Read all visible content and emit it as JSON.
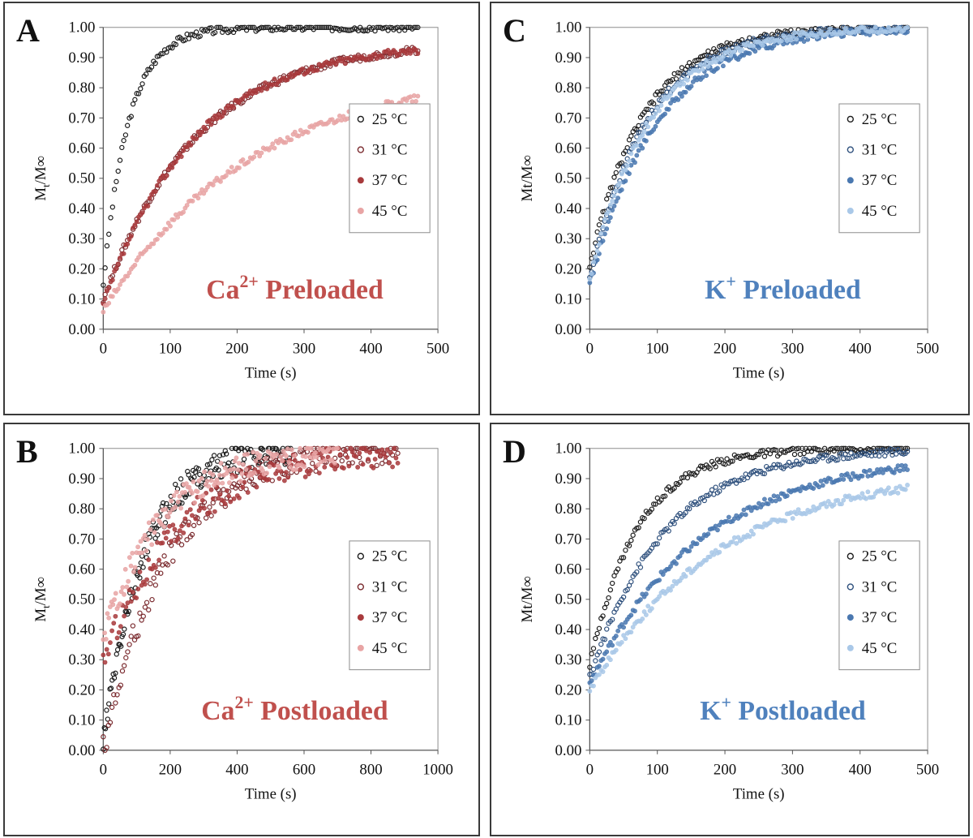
{
  "chart_data": [
    {
      "panel": "A",
      "type": "scatter",
      "title": "",
      "annotation": {
        "base": "Ca",
        "sup": "2+",
        "rest": " Preloaded",
        "color": "#c0504d"
      },
      "xlabel": "Time (s)",
      "ylabel": {
        "base": "M",
        "sub": "t",
        "rest": "/M∞"
      },
      "xlim": [
        0,
        500
      ],
      "ylim": [
        0,
        1
      ],
      "xticks": [
        "0",
        "100",
        "200",
        "300",
        "400",
        "500"
      ],
      "yticks": [
        "0.00",
        "0.10",
        "0.20",
        "0.30",
        "0.40",
        "0.50",
        "0.60",
        "0.70",
        "0.80",
        "0.90",
        "1.00"
      ],
      "series": [
        {
          "name": "25 °C",
          "color": "#1a1a1a",
          "marker": "ring",
          "tmax": 470,
          "y0": 0.15,
          "yend": 1.0,
          "tau": 38
        },
        {
          "name": "31 °C",
          "color": "#7a2a2e",
          "marker": "ring",
          "tmax": 470,
          "y0": 0.1,
          "yend": 0.955,
          "tau": 140
        },
        {
          "name": "37 °C",
          "color": "#a83a3c",
          "marker": "dot",
          "tmax": 470,
          "y0": 0.08,
          "yend": 0.95,
          "tau": 135
        },
        {
          "name": "45 °C",
          "color": "#e8a4a4",
          "marker": "dot",
          "tmax": 470,
          "y0": 0.06,
          "yend": 0.86,
          "tau": 220
        }
      ]
    },
    {
      "panel": "B",
      "type": "scatter",
      "title": "",
      "annotation": {
        "base": "Ca",
        "sup": "2+",
        "rest": " Postloaded",
        "color": "#c0504d"
      },
      "xlabel": "Time (s)",
      "ylabel": {
        "base": "M",
        "sub": "t",
        "rest": "/M∞"
      },
      "xlim": [
        0,
        1000
      ],
      "ylim": [
        0,
        1
      ],
      "xticks": [
        "0",
        "200",
        "400",
        "600",
        "800",
        "1000"
      ],
      "yticks": [
        "0.00",
        "0.10",
        "0.20",
        "0.30",
        "0.40",
        "0.50",
        "0.60",
        "0.70",
        "0.80",
        "0.90",
        "1.00"
      ],
      "series": [
        {
          "name": "25 °C",
          "color": "#1a1a1a",
          "marker": "ring",
          "tmax": 560,
          "y0": 0.02,
          "yend": 1.0,
          "tau": 120
        },
        {
          "name": "31 °C",
          "color": "#7a2a2e",
          "marker": "ring",
          "tmax": 880,
          "y0": 0.0,
          "yend": 1.0,
          "tau": 190
        },
        {
          "name": "37 °C",
          "color": "#a83a3c",
          "marker": "dot",
          "tmax": 880,
          "y0": 0.3,
          "yend": 1.0,
          "tau": 230
        },
        {
          "name": "45 °C",
          "color": "#e8a4a4",
          "marker": "dot",
          "tmax": 700,
          "y0": 0.38,
          "yend": 1.0,
          "tau": 180
        }
      ]
    },
    {
      "panel": "C",
      "type": "scatter",
      "title": "",
      "annotation": {
        "base": "K",
        "sup": "+",
        "rest": " Preloaded",
        "color": "#4f81bd"
      },
      "xlabel": "Time (s)",
      "ylabel": {
        "base": "Mt/M∞",
        "sub": "",
        "rest": ""
      },
      "xlim": [
        0,
        500
      ],
      "ylim": [
        0,
        1
      ],
      "xticks": [
        "0",
        "100",
        "200",
        "300",
        "400",
        "500"
      ],
      "yticks": [
        "0.00",
        "0.10",
        "0.20",
        "0.30",
        "0.40",
        "0.50",
        "0.60",
        "0.70",
        "0.80",
        "0.90",
        "1.00"
      ],
      "series": [
        {
          "name": "25 °C",
          "color": "#1a1a1a",
          "marker": "ring",
          "tmax": 470,
          "y0": 0.21,
          "yend": 1.0,
          "tau": 80
        },
        {
          "name": "31 °C",
          "color": "#2d4f7c",
          "marker": "ring",
          "tmax": 470,
          "y0": 0.16,
          "yend": 1.0,
          "tau": 85
        },
        {
          "name": "37 °C",
          "color": "#4a78b0",
          "marker": "dot",
          "tmax": 470,
          "y0": 0.15,
          "yend": 1.0,
          "tau": 100
        },
        {
          "name": "45 °C",
          "color": "#a9c8e8",
          "marker": "dot",
          "tmax": 470,
          "y0": 0.17,
          "yend": 1.0,
          "tau": 90
        }
      ]
    },
    {
      "panel": "D",
      "type": "scatter",
      "title": "",
      "annotation": {
        "base": "K",
        "sup": "+",
        "rest": " Postloaded",
        "color": "#4f81bd"
      },
      "xlabel": "Time (s)",
      "ylabel": {
        "base": "Mt/M∞",
        "sub": "",
        "rest": ""
      },
      "xlim": [
        0,
        500
      ],
      "ylim": [
        0,
        1
      ],
      "xticks": [
        "0",
        "100",
        "200",
        "300",
        "400",
        "500"
      ],
      "yticks": [
        "0.00",
        "0.10",
        "0.20",
        "0.30",
        "0.40",
        "0.50",
        "0.60",
        "0.70",
        "0.80",
        "0.90",
        "1.00"
      ],
      "series": [
        {
          "name": "25 °C",
          "color": "#1a1a1a",
          "marker": "ring",
          "tmax": 470,
          "y0": 0.28,
          "yend": 1.0,
          "tau": 70
        },
        {
          "name": "31 °C",
          "color": "#2d4f7c",
          "marker": "ring",
          "tmax": 470,
          "y0": 0.24,
          "yend": 1.0,
          "tau": 110
        },
        {
          "name": "37 °C",
          "color": "#4a78b0",
          "marker": "dot",
          "tmax": 470,
          "y0": 0.22,
          "yend": 0.98,
          "tau": 165
        },
        {
          "name": "45 °C",
          "color": "#a9c8e8",
          "marker": "dot",
          "tmax": 470,
          "y0": 0.2,
          "yend": 0.93,
          "tau": 190
        }
      ]
    }
  ]
}
